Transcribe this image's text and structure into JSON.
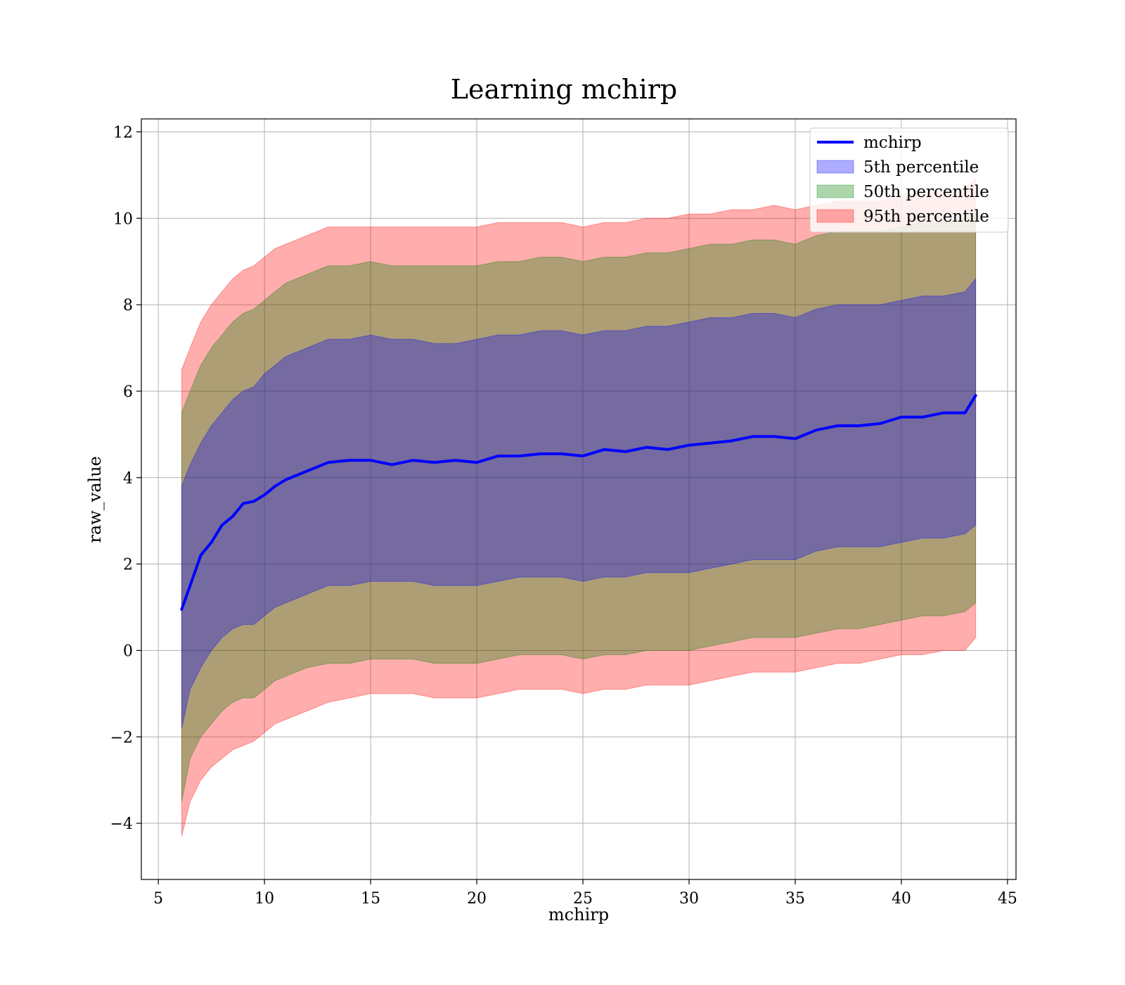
{
  "chart_data": {
    "type": "area",
    "title": "Learning mchirp",
    "xlabel": "mchirp",
    "ylabel": "raw_value",
    "xlim": [
      4.2,
      45.4
    ],
    "ylim": [
      -5.3,
      12.3
    ],
    "x_ticks": [
      5,
      10,
      15,
      20,
      25,
      30,
      35,
      40,
      45
    ],
    "y_ticks": [
      -4,
      -2,
      0,
      2,
      4,
      6,
      8,
      10,
      12
    ],
    "x_tick_labels": [
      "5",
      "10",
      "15",
      "20",
      "25",
      "30",
      "35",
      "40",
      "45"
    ],
    "y_tick_labels": [
      "−4",
      "−2",
      "0",
      "2",
      "4",
      "6",
      "8",
      "10",
      "12"
    ],
    "grid": true,
    "legend_position": "top-right",
    "x": [
      6.1,
      6.5,
      7,
      7.5,
      8,
      8.5,
      9,
      9.5,
      10,
      10.5,
      11,
      12,
      13,
      14,
      15,
      16,
      17,
      18,
      19,
      20,
      21,
      22,
      23,
      24,
      25,
      26,
      27,
      28,
      29,
      30,
      31,
      32,
      33,
      34,
      35,
      36,
      37,
      38,
      39,
      40,
      41,
      42,
      43,
      43.5
    ],
    "series": [
      {
        "name": "mchirp",
        "kind": "line",
        "color": "#0000ff",
        "values": [
          0.95,
          1.5,
          2.2,
          2.5,
          2.9,
          3.1,
          3.4,
          3.45,
          3.6,
          3.8,
          3.95,
          4.15,
          4.35,
          4.4,
          4.4,
          4.3,
          4.4,
          4.35,
          4.4,
          4.35,
          4.5,
          4.5,
          4.55,
          4.55,
          4.5,
          4.65,
          4.6,
          4.7,
          4.65,
          4.75,
          4.8,
          4.85,
          4.95,
          4.95,
          4.9,
          5.1,
          5.2,
          5.2,
          5.25,
          5.4,
          5.4,
          5.5,
          5.5,
          5.9
        ]
      },
      {
        "name": "5th percentile",
        "kind": "band",
        "color": "#0000ff",
        "lower": [
          -1.8,
          -0.9,
          -0.4,
          0.0,
          0.3,
          0.5,
          0.6,
          0.6,
          0.8,
          1.0,
          1.1,
          1.3,
          1.5,
          1.5,
          1.6,
          1.6,
          1.6,
          1.5,
          1.5,
          1.5,
          1.6,
          1.7,
          1.7,
          1.7,
          1.6,
          1.7,
          1.7,
          1.8,
          1.8,
          1.8,
          1.9,
          2.0,
          2.1,
          2.1,
          2.1,
          2.3,
          2.4,
          2.4,
          2.4,
          2.5,
          2.6,
          2.6,
          2.7,
          2.9
        ],
        "upper": [
          3.8,
          4.3,
          4.8,
          5.2,
          5.5,
          5.8,
          6.0,
          6.1,
          6.4,
          6.6,
          6.8,
          7.0,
          7.2,
          7.2,
          7.3,
          7.2,
          7.2,
          7.1,
          7.1,
          7.2,
          7.3,
          7.3,
          7.4,
          7.4,
          7.3,
          7.4,
          7.4,
          7.5,
          7.5,
          7.6,
          7.7,
          7.7,
          7.8,
          7.8,
          7.7,
          7.9,
          8.0,
          8.0,
          8.0,
          8.1,
          8.2,
          8.2,
          8.3,
          8.6
        ]
      },
      {
        "name": "50th percentile",
        "kind": "band",
        "color": "#008000",
        "lower": [
          -3.5,
          -2.5,
          -2.0,
          -1.7,
          -1.4,
          -1.2,
          -1.1,
          -1.1,
          -0.9,
          -0.7,
          -0.6,
          -0.4,
          -0.3,
          -0.3,
          -0.2,
          -0.2,
          -0.2,
          -0.3,
          -0.3,
          -0.3,
          -0.2,
          -0.1,
          -0.1,
          -0.1,
          -0.2,
          -0.1,
          -0.1,
          0.0,
          0.0,
          0.0,
          0.1,
          0.2,
          0.3,
          0.3,
          0.3,
          0.4,
          0.5,
          0.5,
          0.6,
          0.7,
          0.8,
          0.8,
          0.9,
          1.1
        ],
        "upper": [
          5.5,
          6.0,
          6.6,
          7.0,
          7.3,
          7.6,
          7.8,
          7.9,
          8.1,
          8.3,
          8.5,
          8.7,
          8.9,
          8.9,
          9.0,
          8.9,
          8.9,
          8.9,
          8.9,
          8.9,
          9.0,
          9.0,
          9.1,
          9.1,
          9.0,
          9.1,
          9.1,
          9.2,
          9.2,
          9.3,
          9.4,
          9.4,
          9.5,
          9.5,
          9.4,
          9.6,
          9.7,
          9.7,
          9.7,
          9.8,
          9.9,
          9.9,
          10.0,
          10.2
        ]
      },
      {
        "name": "95th percentile",
        "kind": "band",
        "color": "#ff0000",
        "lower": [
          -4.3,
          -3.5,
          -3.0,
          -2.7,
          -2.5,
          -2.3,
          -2.2,
          -2.1,
          -1.9,
          -1.7,
          -1.6,
          -1.4,
          -1.2,
          -1.1,
          -1.0,
          -1.0,
          -1.0,
          -1.1,
          -1.1,
          -1.1,
          -1.0,
          -0.9,
          -0.9,
          -0.9,
          -1.0,
          -0.9,
          -0.9,
          -0.8,
          -0.8,
          -0.8,
          -0.7,
          -0.6,
          -0.5,
          -0.5,
          -0.5,
          -0.4,
          -0.3,
          -0.3,
          -0.2,
          -0.1,
          -0.1,
          0.0,
          0.0,
          0.3
        ],
        "upper": [
          6.5,
          7.0,
          7.6,
          8.0,
          8.3,
          8.6,
          8.8,
          8.9,
          9.1,
          9.3,
          9.4,
          9.6,
          9.8,
          9.8,
          9.8,
          9.8,
          9.8,
          9.8,
          9.8,
          9.8,
          9.9,
          9.9,
          9.9,
          9.9,
          9.8,
          9.9,
          9.9,
          10.0,
          10.0,
          10.1,
          10.1,
          10.2,
          10.2,
          10.3,
          10.2,
          10.3,
          10.4,
          10.4,
          10.4,
          10.5,
          10.6,
          10.6,
          10.7,
          10.9
        ]
      }
    ]
  }
}
